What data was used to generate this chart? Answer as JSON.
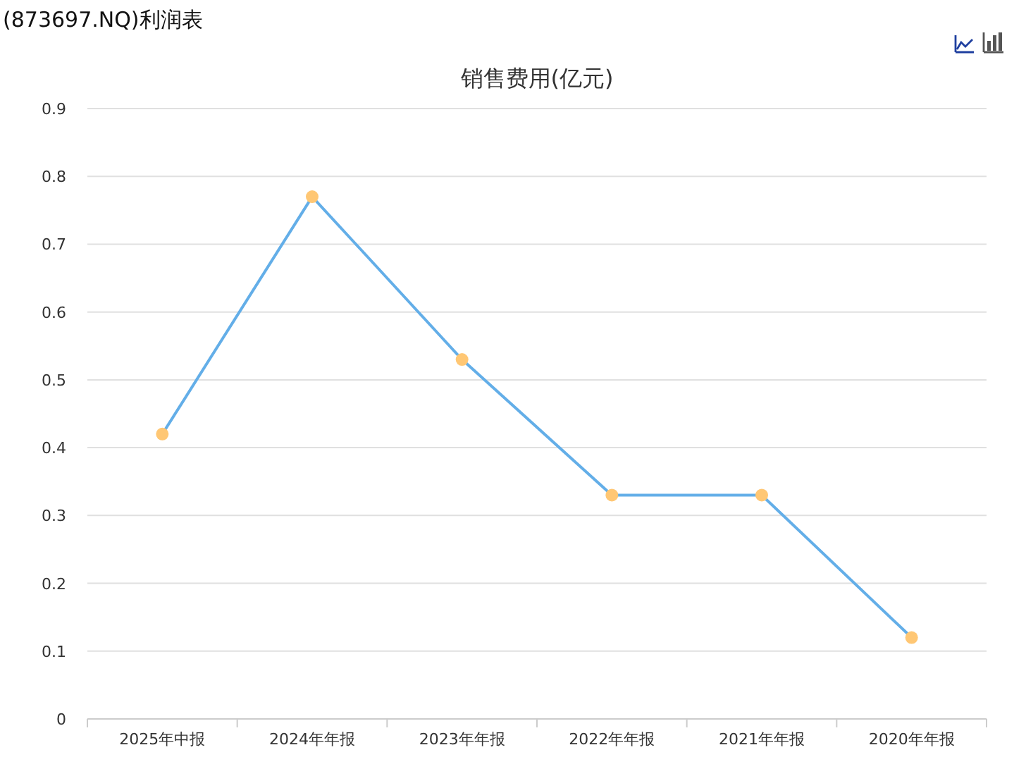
{
  "chart_data": {
    "type": "line",
    "title": "(873697.NQ)利润表",
    "subtitle": "销售费用(亿元)",
    "categories": [
      "2025年中报",
      "2024年年报",
      "2023年年报",
      "2022年年报",
      "2021年年报",
      "2020年年报"
    ],
    "series": [
      {
        "color": "#63aee8",
        "colors": [
          "#ffc774",
          "#ffc774",
          "#ffc774",
          "#ffc774",
          "#ffc774",
          "#ffc774"
        ],
        "values": [
          0.42,
          0.77,
          0.53,
          0.33,
          0.33,
          0.12
        ]
      }
    ],
    "ylim": [
      0,
      0.9
    ],
    "yticks": [
      {
        "value": 0,
        "label": "0"
      },
      0.1,
      0.2,
      0.3,
      0.4,
      0.5,
      0.6,
      0.7,
      0.8,
      0.9
    ],
    "grid": "y",
    "marker": "circle",
    "line_style": "solid"
  }
}
